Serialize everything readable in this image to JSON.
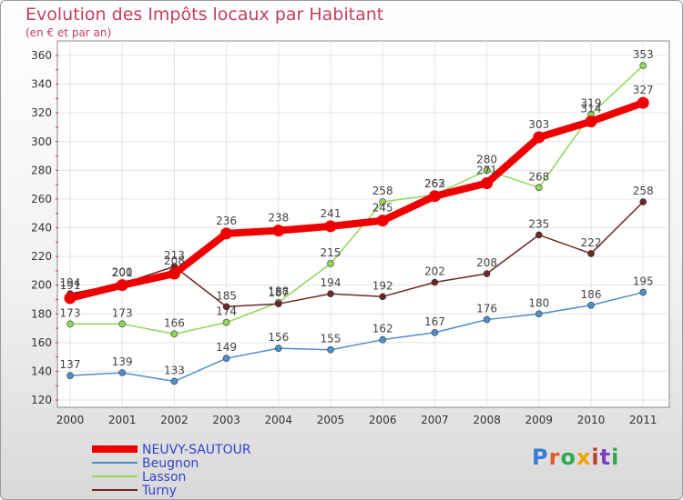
{
  "header": {
    "title": "Evolution des Impôts locaux par Habitant",
    "subtitle": "(en € et par an)"
  },
  "logo": {
    "text": "Proxiti",
    "colors": [
      "#3a7bd5",
      "#e05a2b",
      "#2fa84f",
      "#f0a500",
      "#c0392b",
      "#7b3fbf",
      "#2fa84f"
    ]
  },
  "chart_data": {
    "type": "line",
    "title": "Evolution des Impôts locaux par Habitant",
    "subtitle": "(en € et par an)",
    "x": [
      "2000",
      "2001",
      "2002",
      "2003",
      "2004",
      "2005",
      "2006",
      "2007",
      "2008",
      "2009",
      "2010",
      "2011"
    ],
    "ylim": [
      120,
      360
    ],
    "yticks": [
      "120",
      "140",
      "160",
      "180",
      "200",
      "220",
      "240",
      "260",
      "280",
      "300",
      "320",
      "340",
      "360"
    ],
    "grid": true,
    "legend": "bottom-left",
    "series": [
      {
        "name": "Beugnon",
        "color": "#4f8fc9",
        "values": [
          137,
          139,
          133,
          149,
          156,
          155,
          162,
          167,
          176,
          180,
          186,
          195
        ]
      },
      {
        "name": "Lasson",
        "color": "#8fd65a",
        "values": [
          173,
          173,
          166,
          174,
          188,
          215,
          258,
          263,
          280,
          268,
          319,
          353
        ]
      },
      {
        "name": "Turny",
        "color": "#6b2828",
        "values": [
          194,
          201,
          213,
          185,
          187,
          194,
          192,
          202,
          208,
          235,
          222,
          258
        ]
      },
      {
        "name": "NEUVY-SAUTOUR",
        "color": "#ee0000",
        "values": [
          191,
          200,
          208,
          236,
          238,
          241,
          245,
          262,
          271,
          303,
          314,
          327
        ]
      }
    ],
    "legend_order": [
      "NEUVY-SAUTOUR",
      "Beugnon",
      "Lasson",
      "Turny"
    ],
    "highlight": "NEUVY-SAUTOUR"
  }
}
